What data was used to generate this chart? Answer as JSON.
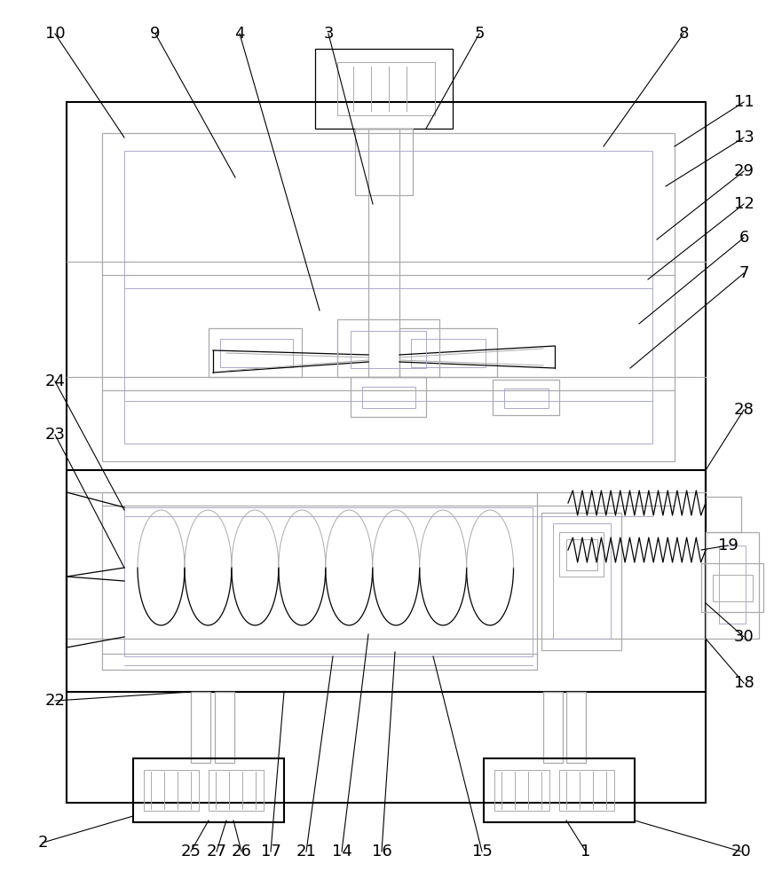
{
  "bg_color": "#ffffff",
  "lc": "#000000",
  "gc": "#aaaaaa",
  "pc": "#aaaacc",
  "fig_width": 8.72,
  "fig_height": 10.0
}
